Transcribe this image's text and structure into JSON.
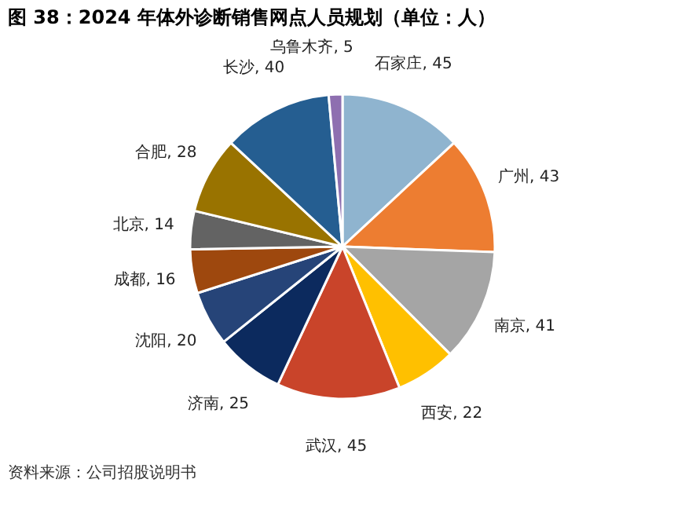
{
  "chart_data": {
    "type": "pie",
    "title": "图 38：2024 年体外诊断销售网点人员规划（单位：人）",
    "categories": [
      "石家庄",
      "广州",
      "南京",
      "西安",
      "武汉",
      "济南",
      "沈阳",
      "成都",
      "北京",
      "合肥",
      "长沙",
      "乌鲁木齐"
    ],
    "values": [
      45,
      43,
      41,
      22,
      45,
      25,
      20,
      16,
      14,
      28,
      40,
      5
    ],
    "value_labels": [
      ", 45",
      ", 43",
      ", 41",
      ", 22",
      ", 45",
      ", 25",
      ", 20",
      ", 16",
      ", 14",
      ", 28",
      ", 40",
      ", 5"
    ],
    "colors": [
      "#8fb4cf",
      "#ed7d31",
      "#a5a5a5",
      "#ffc000",
      "#c9442a",
      "#0c2a5e",
      "#264478",
      "#9e480e",
      "#636363",
      "#997300",
      "#255e91",
      "#8e6fb0"
    ],
    "annotations": [
      "资料来源：公司招股说明书"
    ]
  }
}
